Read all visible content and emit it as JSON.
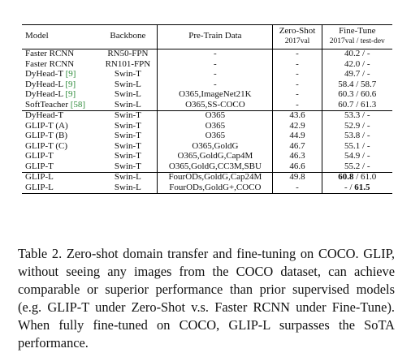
{
  "table": {
    "headers": {
      "model": "Model",
      "backbone": "Backbone",
      "pretrain": "Pre-Train Data",
      "zeroshot": "Zero-Shot",
      "zeroshot_sub": "2017val",
      "finetune": "Fine-Tune",
      "finetune_sub": "2017val / test-dev"
    },
    "groups": [
      {
        "rows": [
          {
            "model": "Faster RCNN",
            "ref": "",
            "backbone": "RN50-FPN",
            "data": "-",
            "zs": "-",
            "ft": "40.2 / -"
          },
          {
            "model": "Faster RCNN",
            "ref": "",
            "backbone": "RN101-FPN",
            "data": "-",
            "zs": "-",
            "ft": "42.0 / -"
          },
          {
            "model": "DyHead-T",
            "ref": "[9]",
            "backbone": "Swin-T",
            "data": "-",
            "zs": "-",
            "ft": "49.7 / -"
          },
          {
            "model": "DyHead-L",
            "ref": "[9]",
            "backbone": "Swin-L",
            "data": "-",
            "zs": "-",
            "ft": "58.4 / 58.7"
          },
          {
            "model": "DyHead-L",
            "ref": "[9]",
            "backbone": "Swin-L",
            "data": "O365,ImageNet21K",
            "zs": "-",
            "ft": "60.3 / 60.6"
          },
          {
            "model": "SoftTeacher",
            "ref": "[58]",
            "backbone": "Swin-L",
            "data": "O365,SS-COCO",
            "zs": "-",
            "ft": "60.7 / 61.3"
          }
        ]
      },
      {
        "rows": [
          {
            "model": "DyHead-T",
            "ref": "",
            "backbone": "Swin-T",
            "data": "O365",
            "zs": "43.6",
            "ft": "53.3 / -"
          },
          {
            "model": "GLIP-T (A)",
            "ref": "",
            "backbone": "Swin-T",
            "data": "O365",
            "zs": "42.9",
            "ft": "52.9 / -"
          },
          {
            "model": "GLIP-T (B)",
            "ref": "",
            "backbone": "Swin-T",
            "data": "O365",
            "zs": "44.9",
            "ft": "53.8 / -"
          },
          {
            "model": "GLIP-T (C)",
            "ref": "",
            "backbone": "Swin-T",
            "data": "O365,GoldG",
            "zs": "46.7",
            "zs_bold": true,
            "ft": "55.1 / -"
          },
          {
            "model": "GLIP-T",
            "ref": "",
            "backbone": "Swin-T",
            "data": "O365,GoldG,Cap4M",
            "zs": "46.3",
            "ft": "54.9 / -"
          },
          {
            "model": "GLIP-T",
            "ref": "",
            "backbone": "Swin-T",
            "data": "O365,GoldG,CC3M,SBU",
            "zs": "46.6",
            "ft": "55.2 / -",
            "ft_bold": true
          }
        ]
      },
      {
        "rows": [
          {
            "model": "GLIP-L",
            "ref": "",
            "backbone": "Swin-L",
            "data": "FourODs,GoldG,Cap24M",
            "zs": "49.8",
            "zs_bold": true,
            "ft": "60.8 / 61.0",
            "ft_bold_part": "60.8",
            "ft_rest": " / 61.0"
          },
          {
            "model": "GLIP-L",
            "ref": "",
            "backbone": "Swin-L",
            "data": "FourODs,GoldG+,COCO",
            "zs": "-",
            "ft": "- / 61.5",
            "ft_pre": "- / ",
            "ft_bold_part": "61.5"
          }
        ]
      }
    ]
  },
  "caption": "Table 2.  Zero-shot domain transfer and fine-tuning on COCO. GLIP, without seeing any images from the COCO dataset, can achieve comparable or superior performance than prior supervised models (e.g. GLIP-T under Zero-Shot v.s. Faster RCNN under Fine-Tune). When fully fine-tuned on COCO, GLIP-L surpasses the SoTA performance."
}
